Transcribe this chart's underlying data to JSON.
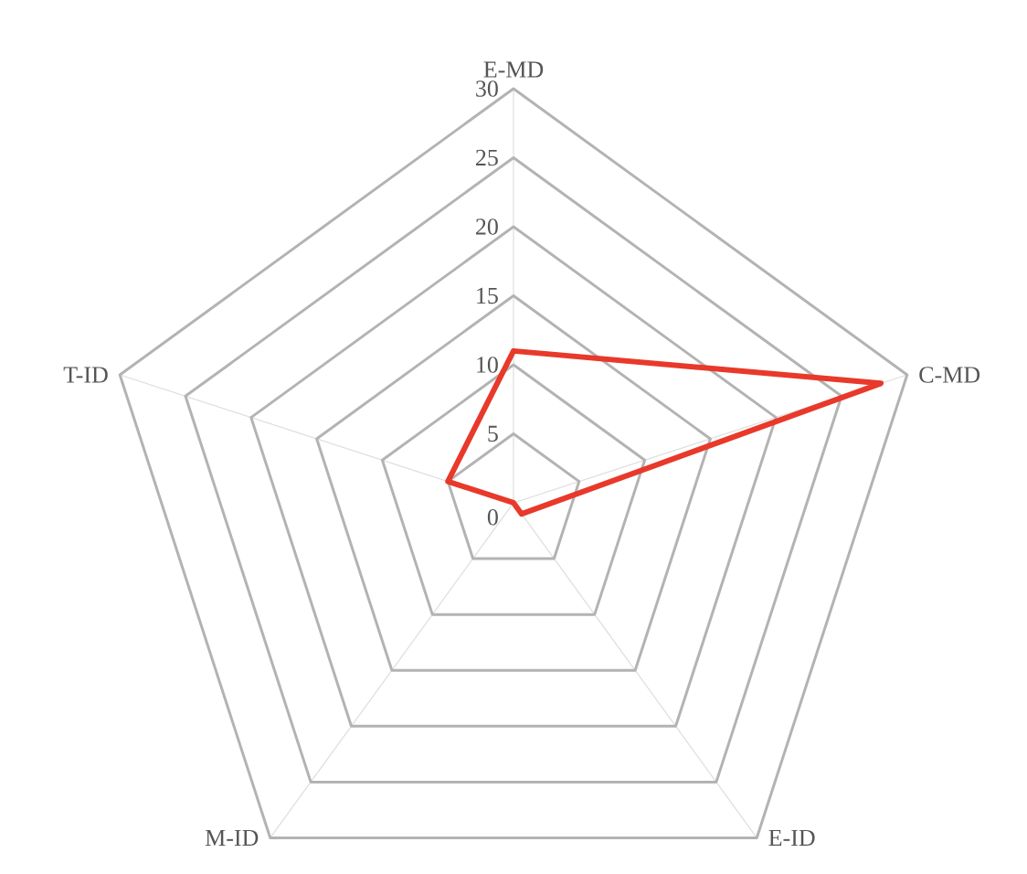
{
  "chart_data": {
    "type": "radar",
    "categories": [
      "E-MD",
      "C-MD",
      "E-ID",
      "M-ID",
      "T-ID"
    ],
    "series": [
      {
        "color": "#e8392a",
        "values": [
          11,
          28,
          1,
          0,
          5
        ]
      }
    ],
    "ylim": [
      0,
      30
    ],
    "yticks": [
      0,
      5,
      10,
      15,
      20,
      25,
      30
    ],
    "grid": true
  }
}
